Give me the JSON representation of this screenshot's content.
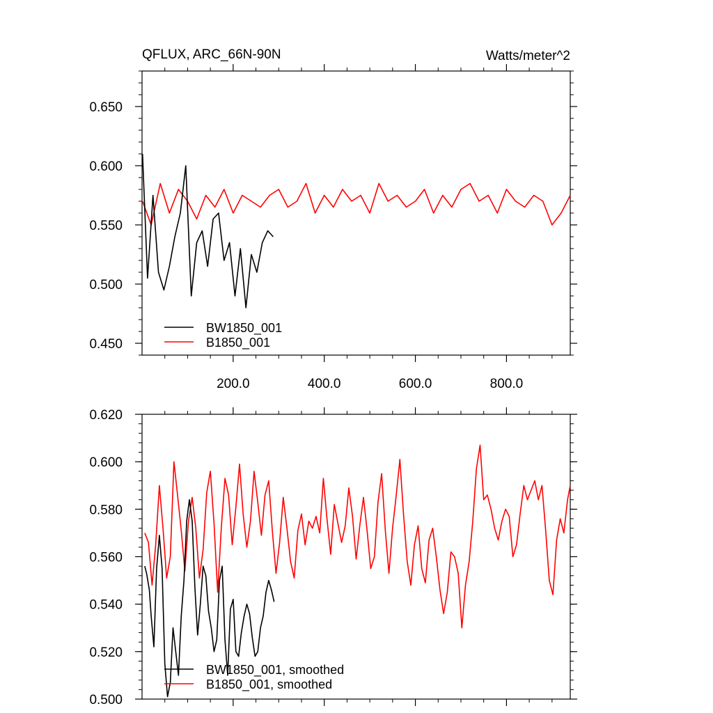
{
  "figure": {
    "title": "QFLUX, ARC_66N-90N",
    "units": "Watts/meter^2"
  },
  "chart_data": [
    {
      "type": "line",
      "title": "QFLUX, ARC_66N-90N",
      "units": "Watts/meter^2",
      "xlabel": "",
      "ylabel": "",
      "xlim": [
        0,
        940
      ],
      "ylim": [
        0.44,
        0.68
      ],
      "x_ticks": [
        200,
        400,
        600,
        800
      ],
      "x_tick_labels": [
        "200.0",
        "400.0",
        "600.0",
        "800.0"
      ],
      "y_ticks": [
        0.45,
        0.5,
        0.55,
        0.6,
        0.65
      ],
      "y_tick_labels": [
        "0.450",
        "0.500",
        "0.550",
        "0.600",
        "0.650"
      ],
      "legend": "bottom-left",
      "grid": false,
      "series": [
        {
          "name": "BW1850_001",
          "color": "#000000",
          "x": [
            1,
            12,
            24,
            36,
            48,
            60,
            72,
            84,
            96,
            108,
            120,
            132,
            144,
            156,
            168,
            180,
            192,
            204,
            216,
            228,
            240,
            252,
            264,
            276,
            288
          ],
          "values": [
            0.61,
            0.505,
            0.575,
            0.51,
            0.495,
            0.515,
            0.54,
            0.56,
            0.6,
            0.49,
            0.535,
            0.545,
            0.515,
            0.555,
            0.56,
            0.52,
            0.535,
            0.49,
            0.53,
            0.48,
            0.525,
            0.51,
            0.535,
            0.545,
            0.54
          ]
        },
        {
          "name": "B1850_001",
          "color": "#ff0000",
          "x": [
            1,
            20,
            40,
            60,
            80,
            100,
            120,
            140,
            160,
            180,
            200,
            220,
            240,
            260,
            280,
            300,
            320,
            340,
            360,
            380,
            400,
            420,
            440,
            460,
            480,
            500,
            520,
            540,
            560,
            580,
            600,
            620,
            640,
            660,
            680,
            700,
            720,
            740,
            760,
            780,
            800,
            820,
            840,
            860,
            880,
            900,
            920,
            940
          ],
          "values": [
            0.57,
            0.55,
            0.585,
            0.56,
            0.58,
            0.57,
            0.555,
            0.575,
            0.565,
            0.58,
            0.56,
            0.575,
            0.57,
            0.565,
            0.575,
            0.58,
            0.565,
            0.57,
            0.585,
            0.56,
            0.575,
            0.565,
            0.58,
            0.57,
            0.575,
            0.56,
            0.585,
            0.57,
            0.575,
            0.565,
            0.57,
            0.58,
            0.56,
            0.575,
            0.565,
            0.58,
            0.585,
            0.57,
            0.575,
            0.56,
            0.58,
            0.57,
            0.565,
            0.575,
            0.57,
            0.55,
            0.56,
            0.575
          ]
        }
      ]
    },
    {
      "type": "line",
      "title": "",
      "xlabel": "",
      "ylabel": "",
      "xlim": [
        0,
        940
      ],
      "ylim": [
        0.5,
        0.62
      ],
      "x_ticks": [
        200,
        400,
        600,
        800
      ],
      "x_tick_labels": [
        "",
        "",
        "",
        ""
      ],
      "y_ticks": [
        0.5,
        0.52,
        0.54,
        0.56,
        0.58,
        0.6,
        0.62
      ],
      "y_tick_labels": [
        "0.500",
        "0.520",
        "0.540",
        "0.560",
        "0.580",
        "0.600",
        "0.620"
      ],
      "legend": "bottom-left",
      "grid": false,
      "series": [
        {
          "name": "BW1850_001, smoothed",
          "color": "#000000",
          "x": [
            6,
            10,
            16,
            20,
            26,
            32,
            38,
            44,
            50,
            56,
            62,
            68,
            74,
            80,
            86,
            92,
            98,
            104,
            110,
            116,
            122,
            128,
            134,
            140,
            146,
            152,
            158,
            164,
            170,
            176,
            182,
            188,
            194,
            200,
            206,
            212,
            218,
            224,
            230,
            236,
            242,
            248,
            254,
            260,
            266,
            272,
            278,
            284,
            290
          ],
          "values": [
            0.556,
            0.553,
            0.546,
            0.535,
            0.522,
            0.555,
            0.569,
            0.555,
            0.515,
            0.501,
            0.507,
            0.53,
            0.52,
            0.51,
            0.535,
            0.55,
            0.575,
            0.584,
            0.575,
            0.547,
            0.527,
            0.54,
            0.556,
            0.552,
            0.537,
            0.53,
            0.52,
            0.525,
            0.55,
            0.556,
            0.525,
            0.51,
            0.538,
            0.542,
            0.52,
            0.518,
            0.528,
            0.535,
            0.54,
            0.536,
            0.526,
            0.518,
            0.52,
            0.53,
            0.535,
            0.545,
            0.55,
            0.546,
            0.541
          ]
        },
        {
          "name": "B1850_001, smoothed",
          "color": "#ff0000",
          "x": [
            6,
            14,
            22,
            30,
            38,
            46,
            54,
            62,
            70,
            78,
            86,
            94,
            102,
            110,
            118,
            126,
            134,
            142,
            150,
            158,
            166,
            174,
            182,
            190,
            198,
            206,
            214,
            222,
            230,
            238,
            246,
            254,
            262,
            270,
            278,
            286,
            294,
            302,
            310,
            318,
            326,
            334,
            342,
            350,
            358,
            366,
            374,
            382,
            390,
            398,
            406,
            414,
            422,
            430,
            438,
            446,
            454,
            462,
            470,
            478,
            486,
            494,
            502,
            510,
            518,
            526,
            534,
            542,
            550,
            558,
            566,
            574,
            582,
            590,
            598,
            606,
            614,
            622,
            630,
            638,
            646,
            654,
            662,
            670,
            678,
            686,
            694,
            702,
            710,
            718,
            726,
            734,
            742,
            750,
            758,
            766,
            774,
            782,
            790,
            798,
            806,
            814,
            822,
            830,
            838,
            846,
            854,
            862,
            870,
            878,
            886,
            894,
            902,
            910,
            918,
            926,
            934,
            940
          ],
          "values": [
            0.57,
            0.566,
            0.548,
            0.565,
            0.59,
            0.572,
            0.551,
            0.56,
            0.6,
            0.586,
            0.571,
            0.554,
            0.575,
            0.585,
            0.572,
            0.551,
            0.563,
            0.587,
            0.596,
            0.574,
            0.545,
            0.572,
            0.593,
            0.586,
            0.565,
            0.581,
            0.599,
            0.578,
            0.564,
            0.575,
            0.596,
            0.583,
            0.569,
            0.586,
            0.592,
            0.571,
            0.553,
            0.566,
            0.585,
            0.572,
            0.558,
            0.551,
            0.571,
            0.578,
            0.565,
            0.575,
            0.572,
            0.577,
            0.57,
            0.593,
            0.576,
            0.561,
            0.582,
            0.574,
            0.566,
            0.573,
            0.589,
            0.577,
            0.559,
            0.573,
            0.585,
            0.571,
            0.555,
            0.56,
            0.583,
            0.595,
            0.571,
            0.553,
            0.572,
            0.586,
            0.601,
            0.578,
            0.558,
            0.548,
            0.565,
            0.573,
            0.555,
            0.549,
            0.567,
            0.572,
            0.56,
            0.546,
            0.536,
            0.545,
            0.562,
            0.56,
            0.553,
            0.53,
            0.548,
            0.558,
            0.575,
            0.597,
            0.607,
            0.584,
            0.586,
            0.58,
            0.572,
            0.567,
            0.575,
            0.58,
            0.577,
            0.56,
            0.565,
            0.578,
            0.59,
            0.584,
            0.588,
            0.592,
            0.584,
            0.59,
            0.571,
            0.55,
            0.544,
            0.567,
            0.576,
            0.57,
            0.584,
            0.59
          ]
        }
      ]
    }
  ]
}
